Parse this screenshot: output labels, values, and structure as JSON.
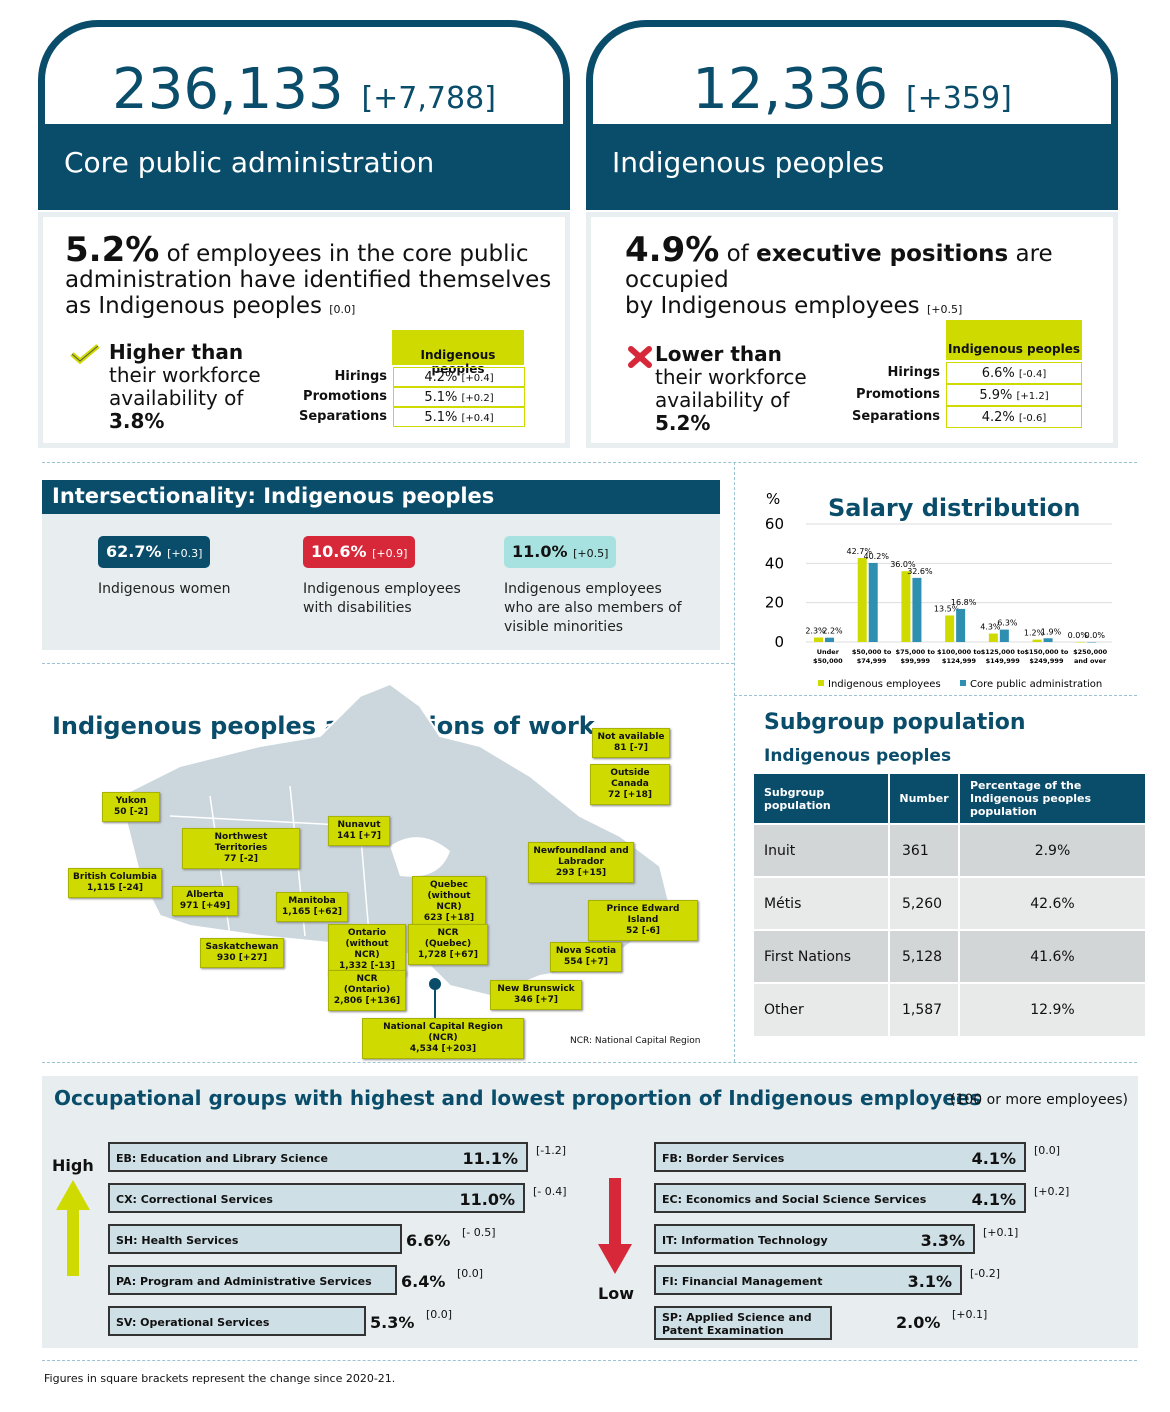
{
  "top": {
    "left": {
      "number": "236,133",
      "change": "[+7,788]",
      "label": "Core public administration"
    },
    "right": {
      "number": "12,336",
      "change": "[+359]",
      "label": "Indigenous peoples"
    }
  },
  "card_left": {
    "pct": "5.2%",
    "text1": " of employees in the core public",
    "text2": "administration have identified themselves",
    "text3": "as Indigenous peoples",
    "change": "[0.0]",
    "vs1": "Higher than",
    "vs2": "their workforce",
    "vs3": "availability of",
    "vs4": "3.8%",
    "table_header": "Indigenous peoples",
    "rows": [
      {
        "label": "Hirings",
        "value": "4.2%",
        "change": "[+0.4]"
      },
      {
        "label": "Promotions",
        "value": "5.1%",
        "change": "[+0.2]"
      },
      {
        "label": "Separations",
        "value": "5.1%",
        "change": "[+0.4]"
      }
    ]
  },
  "card_right": {
    "pct": "4.9%",
    "text1a": " of ",
    "text1b": "executive positions",
    "text1c": " are occupied",
    "text2": "by Indigenous employees",
    "change": "[+0.5]",
    "vs1": "Lower than",
    "vs2": "their workforce",
    "vs3": "availability of",
    "vs4": "5.2%",
    "table_header": "Indigenous peoples",
    "rows": [
      {
        "label": "Hirings",
        "value": "6.6%",
        "change": "[-0.4]"
      },
      {
        "label": "Promotions",
        "value": "5.9%",
        "change": "[+1.2]"
      },
      {
        "label": "Separations",
        "value": "4.2%",
        "change": "[-0.6]"
      }
    ]
  },
  "intersectionality": {
    "title": "Intersectionality: Indigenous peoples",
    "items": [
      {
        "value": "62.7%",
        "change": "[+0.3]",
        "line1": "Indigenous women",
        "line2": "",
        "line3": "",
        "color": "#0a4d6b"
      },
      {
        "value": "10.6%",
        "change": "[+0.9]",
        "line1": "Indigenous employees",
        "line2": "with disabilities",
        "line3": "",
        "color": "#d7283a"
      },
      {
        "value": "11.0%",
        "change": "[+0.5]",
        "line1": "Indigenous employees",
        "line2": "who are also members of",
        "line3": "visible minorities",
        "color": "#8fd8d6"
      }
    ]
  },
  "chart_data": {
    "type": "bar",
    "title": "Salary distribution",
    "ylabel": "%",
    "ylim": [
      0,
      60
    ],
    "yticks": [
      0,
      20,
      40,
      60
    ],
    "categories": [
      [
        "Under",
        "$50,000"
      ],
      [
        "$50,000 to",
        "$74,999"
      ],
      [
        "$75,000 to",
        "$99,999"
      ],
      [
        "$100,000 to",
        "$124,999"
      ],
      [
        "$125,000 to",
        "$149,999"
      ],
      [
        "$150,000 to",
        "$249,999"
      ],
      [
        "$250,000",
        "and over"
      ]
    ],
    "series": [
      {
        "name": "Indigenous employees",
        "color": "#cfdb00",
        "values": [
          2.3,
          42.7,
          36.0,
          13.5,
          4.3,
          1.2,
          0.0
        ],
        "labels": [
          "2.3%",
          "42.7%",
          "36.0%",
          "13.5%",
          "4.3%",
          "1.2%",
          "0.0%"
        ]
      },
      {
        "name": "Core public administration",
        "color": "#2f8fb0",
        "values": [
          2.2,
          40.2,
          32.6,
          16.8,
          6.3,
          1.9,
          0.0
        ],
        "labels": [
          "2.2%",
          "40.2%",
          "32.6%",
          "16.8%",
          "6.3%",
          "1.9%",
          "0.0%"
        ]
      }
    ]
  },
  "map": {
    "title": "Indigenous peoples and regions of work",
    "note": "NCR: National Capital Region",
    "labels": {
      "na": [
        "Not available",
        "81 [-7]"
      ],
      "oc": [
        "Outside Canada",
        "72 [+18]"
      ],
      "yk": [
        "Yukon",
        "50 [-2]"
      ],
      "nwt": [
        "Northwest Territories",
        "77 [-2]"
      ],
      "nu": [
        "Nunavut",
        "141 [+7]"
      ],
      "nl": [
        "Newfoundland and",
        "Labrador",
        "293 [+15]"
      ],
      "bc": [
        "British Columbia",
        "1,115 [-24]"
      ],
      "ab": [
        "Alberta",
        "971 [+49]"
      ],
      "mb": [
        "Manitoba",
        "1,165 [+62]"
      ],
      "qc": [
        "Quebec",
        "(without NCR)",
        "623 [+18]"
      ],
      "pe": [
        "Prince Edward Island",
        "52 [-6]"
      ],
      "sk": [
        "Saskatchewan",
        "930 [+27]"
      ],
      "on": [
        "Ontario",
        "(without NCR)",
        "1,332 [-13]"
      ],
      "ncrq": [
        "NCR",
        "(Quebec)",
        "1,728 [+67]"
      ],
      "ns": [
        "Nova Scotia",
        "554 [+7]"
      ],
      "ncro": [
        "NCR",
        "(Ontario)",
        "2,806 [+136]"
      ],
      "nb": [
        "New Brunswick",
        "346 [+7]"
      ],
      "ncr": [
        "National Capital Region (NCR)",
        "4,534 [+203]"
      ]
    }
  },
  "subgroup": {
    "title": "Subgroup population",
    "subtitle": "Indigenous peoples",
    "headers": [
      "Subgroup population",
      "Number",
      "Percentage of the Indigenous peoples population"
    ],
    "rows": [
      [
        "Inuit",
        "361",
        "2.9%"
      ],
      [
        "Métis",
        "5,260",
        "42.6%"
      ],
      [
        "First Nations",
        "5,128",
        "41.6%"
      ],
      [
        "Other",
        "1,587",
        "12.9%"
      ]
    ]
  },
  "occupational": {
    "title": "Occupational groups with highest and lowest proportion of Indigenous employees",
    "note": "(100 or more employees)",
    "high_label": "High",
    "low_label": "Low",
    "high": [
      {
        "name": "EB: Education and Library Science",
        "value": "11.1%",
        "pct": 11.1,
        "change": "[-1.2]"
      },
      {
        "name": "CX: Correctional Services",
        "value": "11.0%",
        "pct": 11.0,
        "change": "[- 0.4]"
      },
      {
        "name": "SH: Health Services",
        "value": "6.6%",
        "pct": 6.6,
        "change": "[- 0.5]"
      },
      {
        "name": "PA: Program and Administrative Services",
        "value": "6.4%",
        "pct": 6.4,
        "change": "[0.0]"
      },
      {
        "name": "SV: Operational Services",
        "value": "5.3%",
        "pct": 5.3,
        "change": "[0.0]"
      }
    ],
    "low": [
      {
        "name": "FB: Border Services",
        "value": "4.1%",
        "pct": 4.1,
        "change": "[0.0]"
      },
      {
        "name": "EC: Economics and Social Science Services",
        "value": "4.1%",
        "pct": 4.1,
        "change": "[+0.2]"
      },
      {
        "name": "IT: Information Technology",
        "value": "3.3%",
        "pct": 3.3,
        "change": "[+0.1]"
      },
      {
        "name": "FI: Financial Management",
        "value": "3.1%",
        "pct": 3.1,
        "change": "[-0.2]"
      },
      {
        "name": "SP: Applied Science and Patent Examination",
        "value": "2.0%",
        "pct": 2.0,
        "change": "[+0.1]"
      }
    ]
  },
  "footnote": "Figures in square brackets represent the change since 2020-21."
}
